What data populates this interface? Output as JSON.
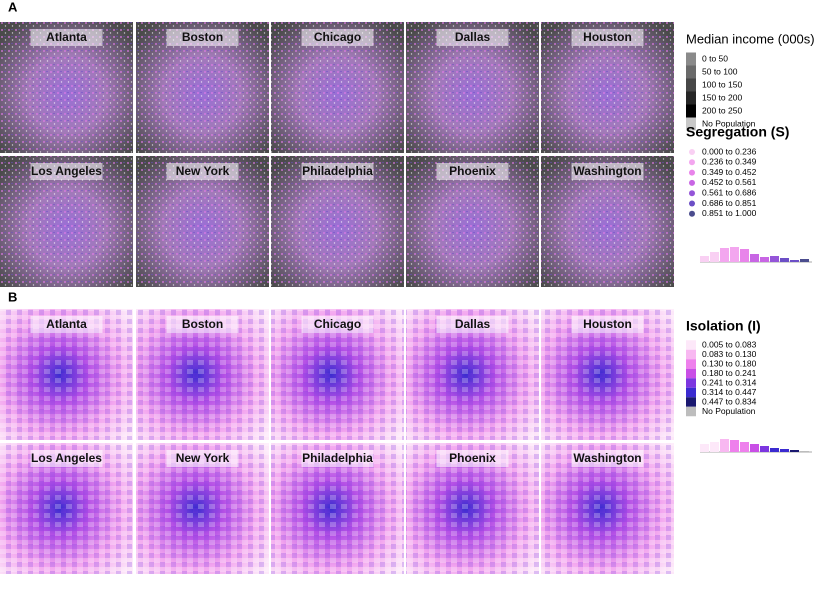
{
  "panels": [
    {
      "label": "A",
      "cities": [
        "Atlanta",
        "Boston",
        "Chicago",
        "Dallas",
        "Houston",
        "Los Angeles",
        "New York",
        "Philadelphia",
        "Phoenix",
        "Washington"
      ],
      "legends": [
        {
          "title": "Median income (000s)",
          "shape": "square",
          "items": [
            {
              "label": "0 to 50",
              "color": "#8a8a8a"
            },
            {
              "label": "50 to 100",
              "color": "#6a6a6a"
            },
            {
              "label": "100 to 150",
              "color": "#474747"
            },
            {
              "label": "150 to 200",
              "color": "#262626"
            },
            {
              "label": "200 to 250",
              "color": "#000000"
            },
            {
              "label": "No Population",
              "color": "#c8c8c8"
            }
          ]
        },
        {
          "title": "Segregation (S)",
          "shape": "circle",
          "items": [
            {
              "label": "0.000 to 0.236",
              "color": "#f9d0f3"
            },
            {
              "label": "0.236 to 0.349",
              "color": "#f3a6ef"
            },
            {
              "label": "0.349 to 0.452",
              "color": "#e884ea"
            },
            {
              "label": "0.452 to 0.561",
              "color": "#c866e4"
            },
            {
              "label": "0.561 to 0.686",
              "color": "#9455d8"
            },
            {
              "label": "0.686 to 0.851",
              "color": "#6c4fc6"
            },
            {
              "label": "0.851 to 1.000",
              "color": "#4b4d8e"
            }
          ]
        }
      ]
    },
    {
      "label": "B",
      "cities": [
        "Atlanta",
        "Boston",
        "Chicago",
        "Dallas",
        "Houston",
        "Los Angeles",
        "New York",
        "Philadelphia",
        "Phoenix",
        "Washington"
      ],
      "legends": [
        {
          "title": "Isolation (I)",
          "shape": "square",
          "items": [
            {
              "label": "0.005 to 0.083",
              "color": "#fde8f9"
            },
            {
              "label": "0.083 to 0.130",
              "color": "#f8b8f1"
            },
            {
              "label": "0.130 to 0.180",
              "color": "#ee80ec"
            },
            {
              "label": "0.180 to 0.241",
              "color": "#c94fe6"
            },
            {
              "label": "0.241 to 0.314",
              "color": "#7c36e0"
            },
            {
              "label": "0.314 to 0.447",
              "color": "#3b2bd0"
            },
            {
              "label": "0.447 to 0.834",
              "color": "#1a1870"
            },
            {
              "label": "No Population",
              "color": "#bdbdbd"
            }
          ]
        }
      ]
    }
  ]
}
